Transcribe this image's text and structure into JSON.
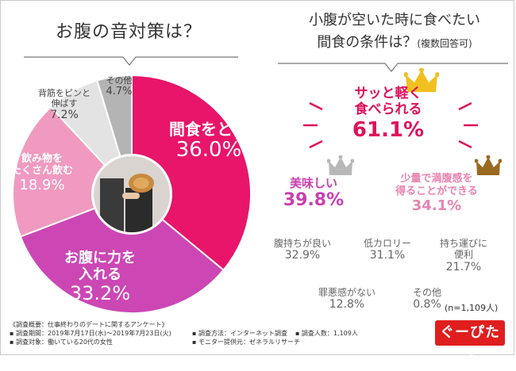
{
  "left_title": "お腹の音対策は？",
  "right_title": "小腹が空いた時に食べたい",
  "right_title2": "間食の条件は？",
  "right_title_note": "(複数回答可)",
  "chart_data": [
    {
      "type": "pie",
      "title": "お腹の音対策は？",
      "donut": true,
      "start_angle_deg": 0,
      "slices": [
        {
          "label": "間食をとる",
          "value": 36.0,
          "value_label": "36.0%",
          "color": "#e8156a"
        },
        {
          "label": "お腹に力を入れる",
          "value": 33.2,
          "value_label": "33.2%",
          "color": "#cc47b4"
        },
        {
          "label": "飲み物をたくさん飲む",
          "value": 18.9,
          "value_label": "18.9%",
          "color": "#f09ac0"
        },
        {
          "label": "背筋をピンと伸ばす",
          "value": 7.2,
          "value_label": "7.2%",
          "color": "#e3e3e3"
        },
        {
          "label": "その他",
          "value": 4.7,
          "value_label": "4.7%",
          "color": "#b4b4b4"
        }
      ]
    },
    {
      "type": "table",
      "title": "小腹が空いた時に食べたい間食の条件は？(複数回答可)",
      "items": [
        {
          "label": "サッと軽く食べられる",
          "value": 61.1,
          "value_label": "61.1%",
          "rank": "gold"
        },
        {
          "label": "美味しい",
          "value": 39.8,
          "value_label": "39.8%",
          "rank": "silver"
        },
        {
          "label": "少量で満腹感を得ることができる",
          "value": 34.1,
          "value_label": "34.1%",
          "rank": "bronze"
        },
        {
          "label": "腹持ちが良い",
          "value": 32.9,
          "value_label": "32.9%"
        },
        {
          "label": "低カロリー",
          "value": 31.1,
          "value_label": "31.1%"
        },
        {
          "label": "持ち運びに便利",
          "value": 21.7,
          "value_label": "21.7%"
        },
        {
          "label": "罪悪感がない",
          "value": 12.8,
          "value_label": "12.8%"
        },
        {
          "label": "その他",
          "value": 0.8,
          "value_label": "0.8%"
        }
      ],
      "n_note": "(n=1,109人)"
    }
  ],
  "pie_labels": {
    "s0": {
      "l1": "間食をとる",
      "v": "36.0%"
    },
    "s1": {
      "l1": "お腹に力を",
      "l2": "入れる",
      "v": "33.2%"
    },
    "s2": {
      "l1": "飲み物を",
      "l2": "たくさん飲む",
      "v": "18.9%"
    },
    "s3": {
      "l1": "背筋をピンと",
      "l2": "伸ばす",
      "v": "7.2%"
    },
    "s4": {
      "l1": "その他",
      "v": "4.7%"
    }
  },
  "cond_labels": {
    "c0": {
      "l1": "サッと軽く",
      "l2": "食べられる",
      "v": "61.1%"
    },
    "c1": {
      "l1": "美味しい",
      "v": "39.8%"
    },
    "c2": {
      "l1": "少量で満腹感を",
      "l2": "得ることができる",
      "v": "34.1%"
    },
    "c3": {
      "l1": "腹持ちが良い",
      "v": "32.9%"
    },
    "c4": {
      "l1": "低カロリー",
      "v": "31.1%"
    },
    "c5": {
      "l1": "持ち運びに",
      "l2": "便利",
      "v": "21.7%"
    },
    "c6": {
      "l1": "罪悪感がない",
      "v": "12.8%"
    },
    "c7": {
      "l1": "その他",
      "v": "0.8%"
    }
  },
  "survey": {
    "heading": "《調査概要：仕事終わりのデートに関するアンケート》",
    "period": "▪ 調査期間：2019年7月17日(水)～2019年7月23日(火)",
    "target": "▪ 調査対象：働いている20代の女性",
    "method": "▪ 調査方法：インターネット調査",
    "count": "▪ 調査人数：1,109人",
    "provider": "▪ モニター提供元：ゼネラルリサーチ"
  },
  "logo_text": "ぐーぴたっ",
  "colors": {
    "gold": "#f0c020",
    "silver": "#b8b8b8",
    "bronze": "#9a6a20",
    "accent_red": "#e01e1e"
  }
}
